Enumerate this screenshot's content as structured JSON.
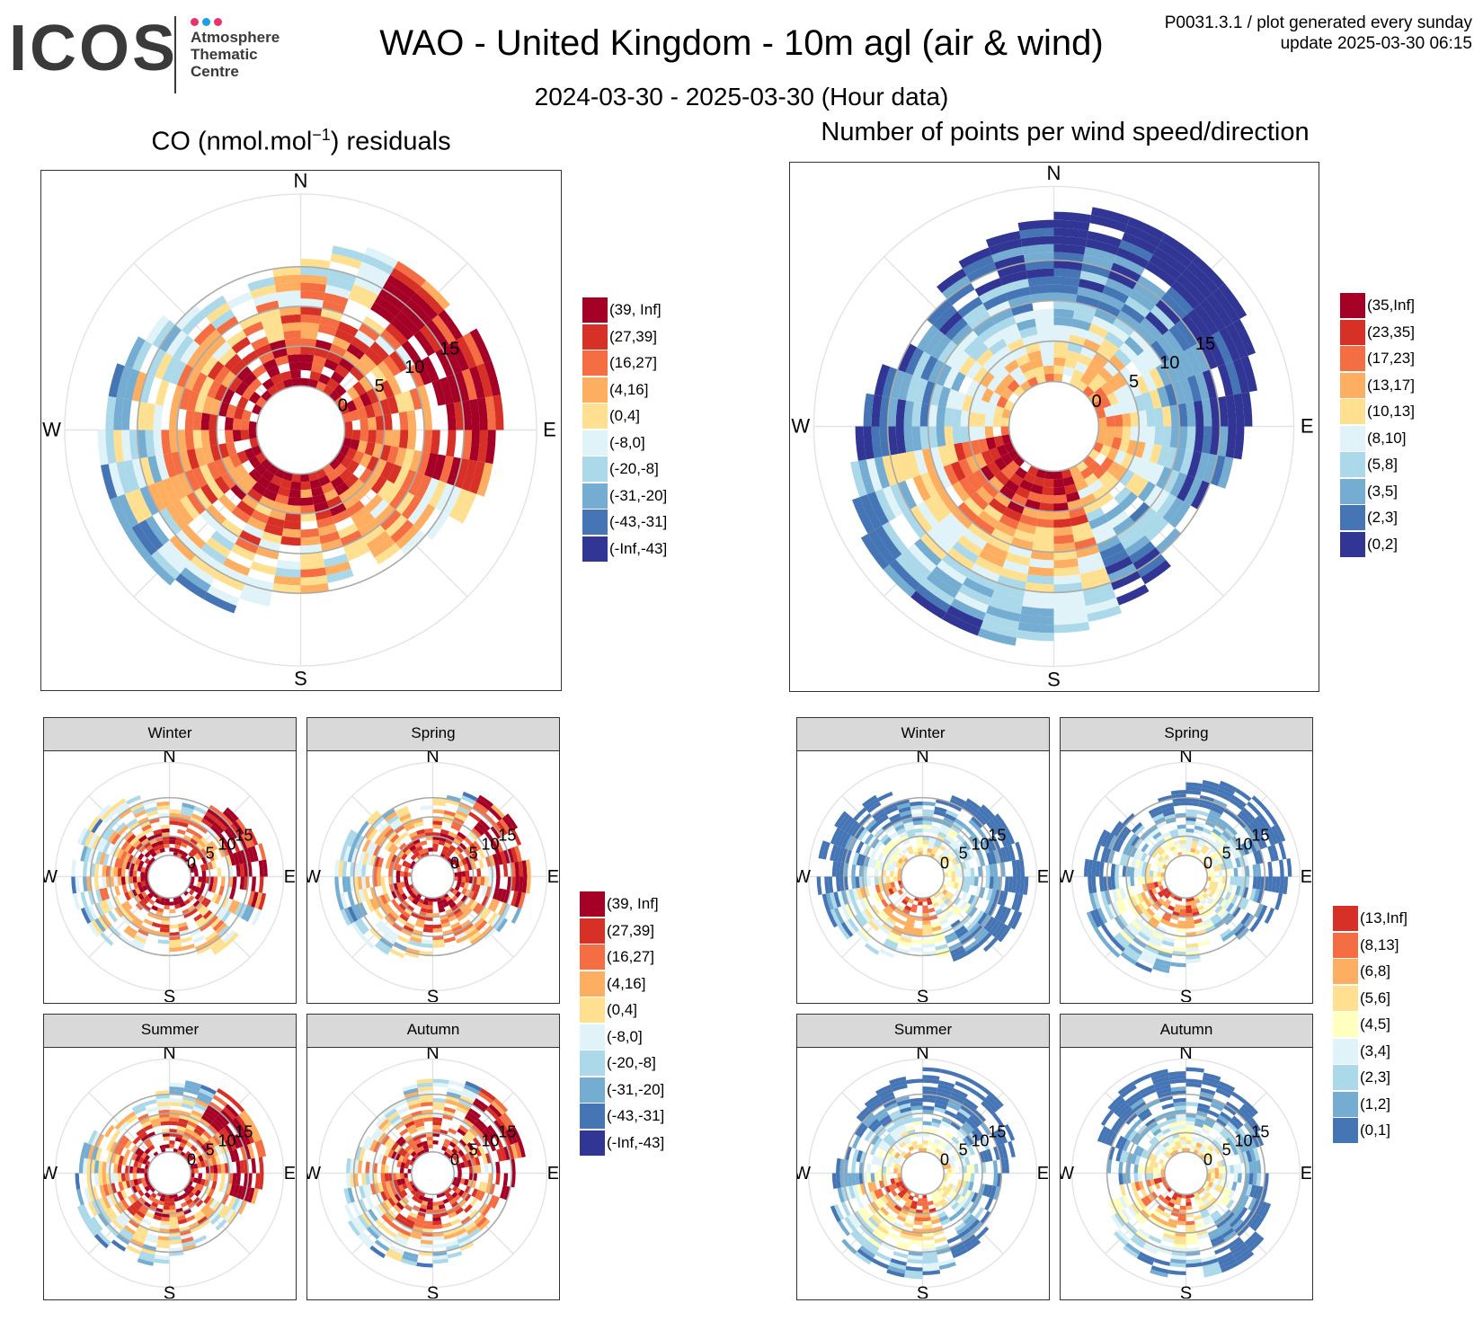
{
  "header": {
    "logo_text": "ICOS",
    "logo_sub": [
      "Atmosphere",
      "Thematic",
      "Centre"
    ],
    "logo_dot_colors": [
      "#e6336f",
      "#1d9fe0",
      "#e6336f"
    ],
    "title": "WAO - United Kingdom - 10m agl (air & wind)",
    "subtitle": "2024-03-30 - 2025-03-30 (Hour data)",
    "meta_line1": "P0031.3.1 / plot generated every sunday",
    "meta_line2": "update  2025-03-30 06:15"
  },
  "chart_data": [
    {
      "id": "co-main",
      "type": "heatmap",
      "subtype": "polar wind-speed/direction plot",
      "title_pre": "CO (nmol.mol",
      "title_sup": "−1",
      "title_post": ") residuals",
      "compass": [
        "N",
        "E",
        "S",
        "W"
      ],
      "radial_ticks": [
        0,
        5,
        10,
        15
      ],
      "legend": [
        {
          "label": "(39, Inf]",
          "color": "#a50026"
        },
        {
          "label": "(27,39]",
          "color": "#d73027"
        },
        {
          "label": "(16,27]",
          "color": "#f46d43"
        },
        {
          "label": "(4,16]",
          "color": "#fdae61"
        },
        {
          "label": "(0,4]",
          "color": "#fee090"
        },
        {
          "label": "(-8,0]",
          "color": "#e0f3f8"
        },
        {
          "label": "(-20,-8]",
          "color": "#abd9e9"
        },
        {
          "label": "(-31,-20]",
          "color": "#74add1"
        },
        {
          "label": "(-43,-31]",
          "color": "#4575b4"
        },
        {
          "label": "(-Inf,-43]",
          "color": "#313695"
        }
      ]
    },
    {
      "id": "count-main",
      "type": "heatmap",
      "subtype": "polar wind-speed/direction plot",
      "title": "Number of points per wind speed/direction",
      "compass": [
        "N",
        "E",
        "S",
        "W"
      ],
      "radial_ticks": [
        0,
        5,
        10,
        15
      ],
      "legend": [
        {
          "label": "(35,Inf]",
          "color": "#a50026"
        },
        {
          "label": "(23,35]",
          "color": "#d73027"
        },
        {
          "label": "(17,23]",
          "color": "#f46d43"
        },
        {
          "label": "(13,17]",
          "color": "#fdae61"
        },
        {
          "label": "(10,13]",
          "color": "#fee090"
        },
        {
          "label": "(8,10]",
          "color": "#e0f3f8"
        },
        {
          "label": "(5,8]",
          "color": "#abd9e9"
        },
        {
          "label": "(3,5]",
          "color": "#74add1"
        },
        {
          "label": "(2,3]",
          "color": "#4575b4"
        },
        {
          "label": "(0,2]",
          "color": "#313695"
        }
      ]
    },
    {
      "id": "co-seasonal",
      "type": "heatmap",
      "subtype": "polar facets",
      "facets": [
        "Winter",
        "Spring",
        "Summer",
        "Autumn"
      ],
      "compass": [
        "N",
        "E",
        "S",
        "W"
      ],
      "radial_ticks": [
        0,
        5,
        10,
        15
      ],
      "legend": [
        {
          "label": "(39, Inf]",
          "color": "#a50026"
        },
        {
          "label": "(27,39]",
          "color": "#d73027"
        },
        {
          "label": "(16,27]",
          "color": "#f46d43"
        },
        {
          "label": "(4,16]",
          "color": "#fdae61"
        },
        {
          "label": "(0,4]",
          "color": "#fee090"
        },
        {
          "label": "(-8,0]",
          "color": "#e0f3f8"
        },
        {
          "label": "(-20,-8]",
          "color": "#abd9e9"
        },
        {
          "label": "(-31,-20]",
          "color": "#74add1"
        },
        {
          "label": "(-43,-31]",
          "color": "#4575b4"
        },
        {
          "label": "(-Inf,-43]",
          "color": "#313695"
        }
      ]
    },
    {
      "id": "count-seasonal",
      "type": "heatmap",
      "subtype": "polar facets",
      "facets": [
        "Winter",
        "Spring",
        "Summer",
        "Autumn"
      ],
      "compass": [
        "N",
        "E",
        "S",
        "W"
      ],
      "radial_ticks": [
        0,
        5,
        10,
        15
      ],
      "legend": [
        {
          "label": "(13,Inf]",
          "color": "#d73027"
        },
        {
          "label": "(8,13]",
          "color": "#f46d43"
        },
        {
          "label": "(6,8]",
          "color": "#fdae61"
        },
        {
          "label": "(5,6]",
          "color": "#fee090"
        },
        {
          "label": "(4,5]",
          "color": "#ffffbf"
        },
        {
          "label": "(3,4]",
          "color": "#e0f3f8"
        },
        {
          "label": "(2,3]",
          "color": "#abd9e9"
        },
        {
          "label": "(1,2]",
          "color": "#74add1"
        },
        {
          "label": "(0,1]",
          "color": "#4575b4"
        }
      ]
    }
  ]
}
